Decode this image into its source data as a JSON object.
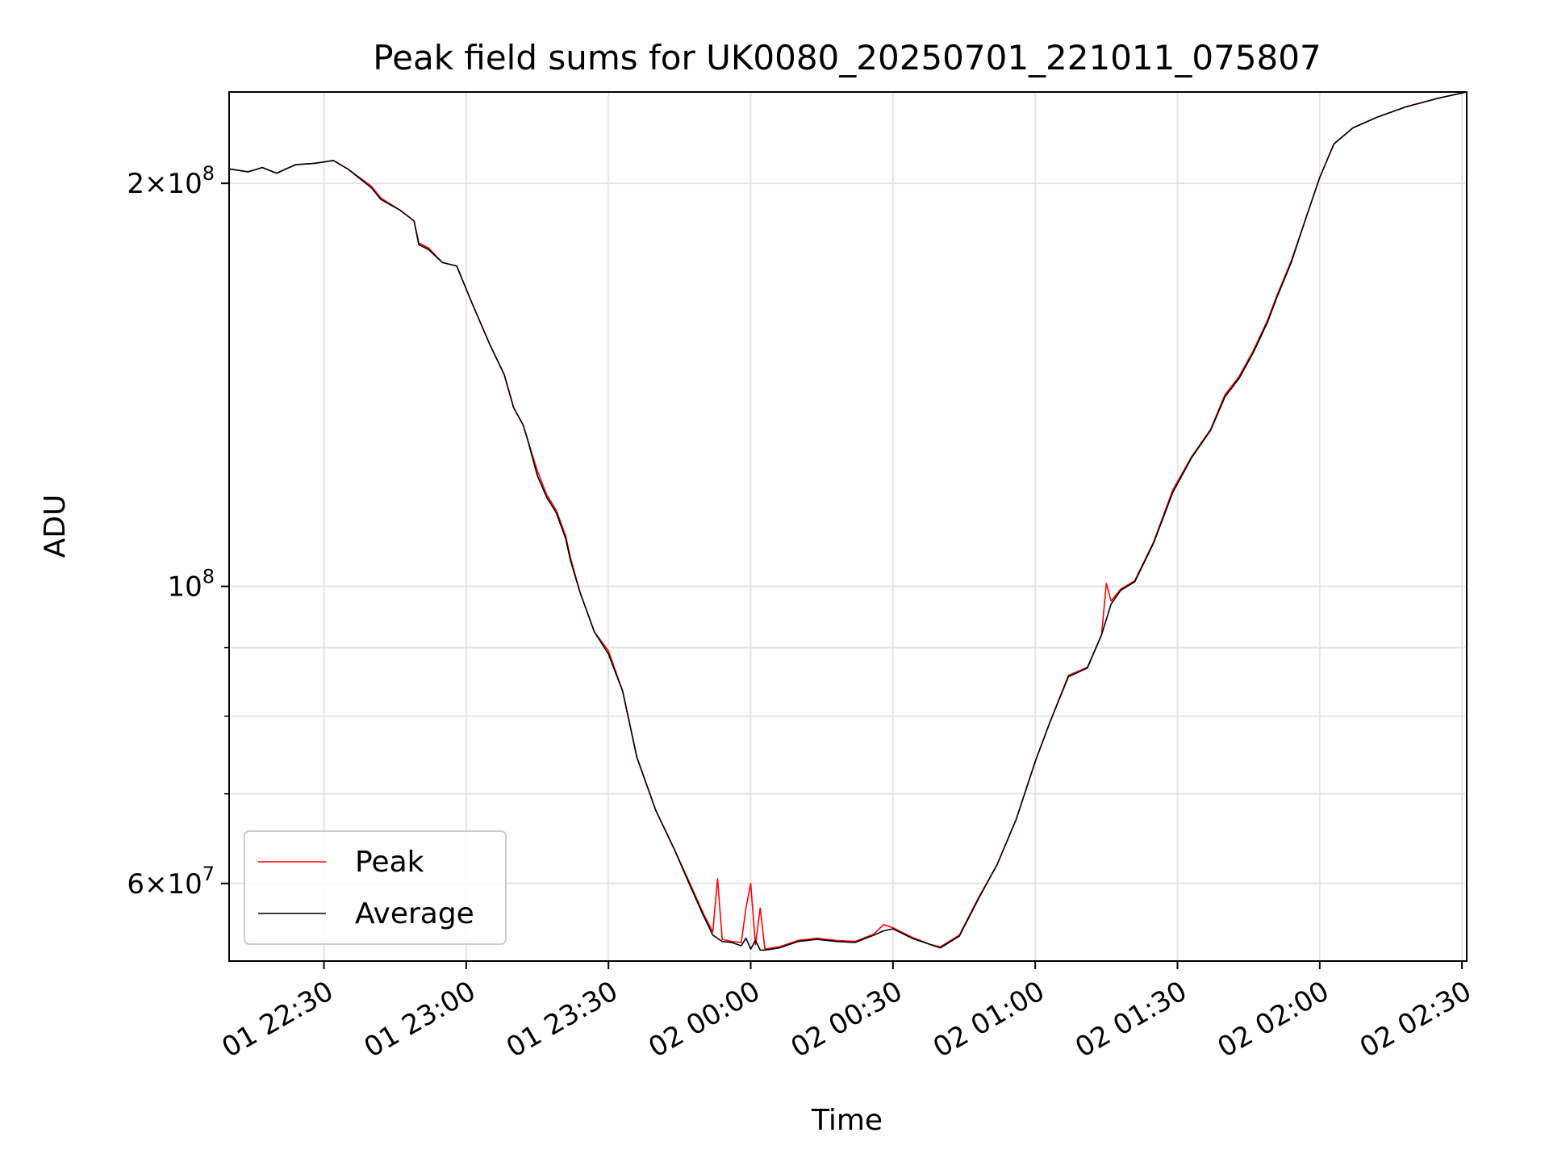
{
  "chart_data": {
    "type": "line",
    "title": "Peak field sums for UK0080_20250701_221011_075807",
    "xlabel": "Time",
    "ylabel": "ADU",
    "yscale": "log",
    "ylim": [
      52500000,
      234000000
    ],
    "xlim": [
      "2025-07-01 22:10",
      "2025-07-02 02:31"
    ],
    "x_ticks": [
      {
        "t": "2025-07-01 22:30",
        "label": "01 22:30"
      },
      {
        "t": "2025-07-01 23:00",
        "label": "01 23:00"
      },
      {
        "t": "2025-07-01 23:30",
        "label": "01 23:30"
      },
      {
        "t": "2025-07-02 00:00",
        "label": "02 00:00"
      },
      {
        "t": "2025-07-02 00:30",
        "label": "02 00:30"
      },
      {
        "t": "2025-07-02 01:00",
        "label": "02 01:00"
      },
      {
        "t": "2025-07-02 01:30",
        "label": "02 01:30"
      },
      {
        "t": "2025-07-02 02:00",
        "label": "02 02:00"
      },
      {
        "t": "2025-07-02 02:30",
        "label": "02 02:30"
      }
    ],
    "y_ticks_major": [
      {
        "v": 60000000,
        "mant": "6",
        "exp": "7"
      },
      {
        "v": 100000000,
        "mant": "",
        "exp": "8"
      },
      {
        "v": 200000000,
        "mant": "2",
        "exp": "8"
      }
    ],
    "y_ticks_minor": [
      70000000,
      80000000,
      90000000
    ],
    "grid": true,
    "legend_position": "lower-left",
    "series": [
      {
        "name": "Peak",
        "color": "#ff0000",
        "points": [
          [
            "2025-07-01 22:10",
            205000000
          ],
          [
            "2025-07-01 22:14",
            204000000
          ],
          [
            "2025-07-01 22:17",
            205500000
          ],
          [
            "2025-07-01 22:20",
            203500000
          ],
          [
            "2025-07-01 22:24",
            206500000
          ],
          [
            "2025-07-01 22:28",
            207000000
          ],
          [
            "2025-07-01 22:32",
            208000000
          ],
          [
            "2025-07-01 22:35",
            205000000
          ],
          [
            "2025-07-01 22:40",
            199000000
          ],
          [
            "2025-07-01 22:42",
            195000000
          ],
          [
            "2025-07-01 22:46",
            191000000
          ],
          [
            "2025-07-01 22:49",
            187500000
          ],
          [
            "2025-07-01 22:50",
            180500000
          ],
          [
            "2025-07-01 22:52",
            179000000
          ],
          [
            "2025-07-01 22:55",
            174500000
          ],
          [
            "2025-07-01 22:58",
            173500000
          ],
          [
            "2025-07-01 23:01",
            163500000
          ],
          [
            "2025-07-01 23:05",
            151500000
          ],
          [
            "2025-07-01 23:08",
            144000000
          ],
          [
            "2025-07-01 23:10",
            136000000
          ],
          [
            "2025-07-01 23:12",
            132000000
          ],
          [
            "2025-07-01 23:13",
            128500000
          ],
          [
            "2025-07-01 23:15",
            122000000
          ],
          [
            "2025-07-01 23:17",
            117000000
          ],
          [
            "2025-07-01 23:19",
            114000000
          ],
          [
            "2025-07-01 23:21",
            109000000
          ],
          [
            "2025-07-01 23:22",
            105000000
          ],
          [
            "2025-07-01 23:24",
            99000000
          ],
          [
            "2025-07-01 23:27",
            92500000
          ],
          [
            "2025-07-01 23:30",
            89500000
          ],
          [
            "2025-07-01 23:33",
            83500000
          ],
          [
            "2025-07-01 23:36",
            74500000
          ],
          [
            "2025-07-01 23:40",
            68000000
          ],
          [
            "2025-07-01 23:44",
            63500000
          ],
          [
            "2025-07-01 23:47",
            60200000
          ],
          [
            "2025-07-01 23:50",
            57000000
          ],
          [
            "2025-07-01 23:52",
            55200000
          ],
          [
            "2025-07-01 23:53",
            60500000
          ],
          [
            "2025-07-01 23:54",
            54500000
          ],
          [
            "2025-07-01 23:56",
            54300000
          ],
          [
            "2025-07-01 23:58",
            54200000
          ],
          [
            "2025-07-01 23:59",
            57500000
          ],
          [
            "2025-07-02 00:00",
            60000000
          ],
          [
            "2025-07-02 00:01",
            54000000
          ],
          [
            "2025-07-02 00:02",
            57500000
          ],
          [
            "2025-07-02 00:03",
            53600000
          ],
          [
            "2025-07-02 00:06",
            53800000
          ],
          [
            "2025-07-02 00:10",
            54400000
          ],
          [
            "2025-07-02 00:14",
            54600000
          ],
          [
            "2025-07-02 00:18",
            54400000
          ],
          [
            "2025-07-02 00:22",
            54300000
          ],
          [
            "2025-07-02 00:26",
            55000000
          ],
          [
            "2025-07-02 00:28",
            55900000
          ],
          [
            "2025-07-02 00:30",
            55600000
          ],
          [
            "2025-07-02 00:34",
            54700000
          ],
          [
            "2025-07-02 00:38",
            54000000
          ],
          [
            "2025-07-02 00:40",
            53800000
          ],
          [
            "2025-07-02 00:44",
            54900000
          ],
          [
            "2025-07-02 00:48",
            58500000
          ],
          [
            "2025-07-02 00:52",
            62000000
          ],
          [
            "2025-07-02 00:56",
            67000000
          ],
          [
            "2025-07-02 01:00",
            74000000
          ],
          [
            "2025-07-02 01:03",
            79000000
          ],
          [
            "2025-07-02 01:07",
            85800000
          ],
          [
            "2025-07-02 01:11",
            87000000
          ],
          [
            "2025-07-02 01:14",
            92000000
          ],
          [
            "2025-07-02 01:15",
            100500000
          ],
          [
            "2025-07-02 01:16",
            97500000
          ],
          [
            "2025-07-02 01:18",
            99500000
          ],
          [
            "2025-07-02 01:21",
            101000000
          ],
          [
            "2025-07-02 01:25",
            108000000
          ],
          [
            "2025-07-02 01:29",
            118000000
          ],
          [
            "2025-07-02 01:33",
            125000000
          ],
          [
            "2025-07-02 01:37",
            131000000
          ],
          [
            "2025-07-02 01:40",
            139000000
          ],
          [
            "2025-07-02 01:43",
            143500000
          ],
          [
            "2025-07-02 01:46",
            150000000
          ],
          [
            "2025-07-02 01:49",
            158000000
          ],
          [
            "2025-07-02 01:51",
            165000000
          ],
          [
            "2025-07-02 01:54",
            175000000
          ],
          [
            "2025-07-02 01:57",
            188000000
          ],
          [
            "2025-07-02 02:00",
            202000000
          ],
          [
            "2025-07-02 02:03",
            214000000
          ],
          [
            "2025-07-02 02:07",
            220000000
          ],
          [
            "2025-07-02 02:12",
            224000000
          ],
          [
            "2025-07-02 02:18",
            228000000
          ],
          [
            "2025-07-02 02:25",
            231500000
          ],
          [
            "2025-07-02 02:31",
            234000000
          ]
        ]
      },
      {
        "name": "Average",
        "color": "#000000",
        "points": [
          [
            "2025-07-01 22:10",
            205000000
          ],
          [
            "2025-07-01 22:14",
            204000000
          ],
          [
            "2025-07-01 22:17",
            205500000
          ],
          [
            "2025-07-01 22:20",
            203500000
          ],
          [
            "2025-07-01 22:24",
            206500000
          ],
          [
            "2025-07-01 22:28",
            207000000
          ],
          [
            "2025-07-01 22:32",
            208000000
          ],
          [
            "2025-07-01 22:35",
            205000000
          ],
          [
            "2025-07-01 22:40",
            198500000
          ],
          [
            "2025-07-01 22:42",
            194500000
          ],
          [
            "2025-07-01 22:46",
            191000000
          ],
          [
            "2025-07-01 22:49",
            187500000
          ],
          [
            "2025-07-01 22:50",
            180000000
          ],
          [
            "2025-07-01 22:52",
            178500000
          ],
          [
            "2025-07-01 22:55",
            174500000
          ],
          [
            "2025-07-01 22:58",
            173500000
          ],
          [
            "2025-07-01 23:01",
            163500000
          ],
          [
            "2025-07-01 23:05",
            151500000
          ],
          [
            "2025-07-01 23:08",
            144000000
          ],
          [
            "2025-07-01 23:10",
            136000000
          ],
          [
            "2025-07-01 23:12",
            132000000
          ],
          [
            "2025-07-01 23:13",
            128500000
          ],
          [
            "2025-07-01 23:15",
            121000000
          ],
          [
            "2025-07-01 23:17",
            116500000
          ],
          [
            "2025-07-01 23:19",
            113500000
          ],
          [
            "2025-07-01 23:21",
            108500000
          ],
          [
            "2025-07-01 23:22",
            104500000
          ],
          [
            "2025-07-01 23:24",
            99000000
          ],
          [
            "2025-07-01 23:27",
            92500000
          ],
          [
            "2025-07-01 23:30",
            89000000
          ],
          [
            "2025-07-01 23:33",
            83500000
          ],
          [
            "2025-07-01 23:36",
            74500000
          ],
          [
            "2025-07-01 23:40",
            68000000
          ],
          [
            "2025-07-01 23:44",
            63500000
          ],
          [
            "2025-07-01 23:47",
            60000000
          ],
          [
            "2025-07-01 23:50",
            56800000
          ],
          [
            "2025-07-01 23:52",
            54900000
          ],
          [
            "2025-07-01 23:54",
            54300000
          ],
          [
            "2025-07-01 23:56",
            54200000
          ],
          [
            "2025-07-01 23:58",
            53900000
          ],
          [
            "2025-07-01 23:59",
            54600000
          ],
          [
            "2025-07-02 00:00",
            53600000
          ],
          [
            "2025-07-02 00:01",
            54400000
          ],
          [
            "2025-07-02 00:02",
            53500000
          ],
          [
            "2025-07-02 00:03",
            53500000
          ],
          [
            "2025-07-02 00:06",
            53700000
          ],
          [
            "2025-07-02 00:10",
            54300000
          ],
          [
            "2025-07-02 00:14",
            54500000
          ],
          [
            "2025-07-02 00:18",
            54300000
          ],
          [
            "2025-07-02 00:22",
            54200000
          ],
          [
            "2025-07-02 00:26",
            54900000
          ],
          [
            "2025-07-02 00:28",
            55300000
          ],
          [
            "2025-07-02 00:30",
            55500000
          ],
          [
            "2025-07-02 00:34",
            54600000
          ],
          [
            "2025-07-02 00:38",
            54000000
          ],
          [
            "2025-07-02 00:40",
            53700000
          ],
          [
            "2025-07-02 00:44",
            54800000
          ],
          [
            "2025-07-02 00:48",
            58400000
          ],
          [
            "2025-07-02 00:52",
            62000000
          ],
          [
            "2025-07-02 00:56",
            67000000
          ],
          [
            "2025-07-02 01:00",
            74000000
          ],
          [
            "2025-07-02 01:03",
            79000000
          ],
          [
            "2025-07-02 01:07",
            85600000
          ],
          [
            "2025-07-02 01:11",
            86900000
          ],
          [
            "2025-07-02 01:14",
            92000000
          ],
          [
            "2025-07-02 01:16",
            97000000
          ],
          [
            "2025-07-02 01:18",
            99300000
          ],
          [
            "2025-07-02 01:21",
            100800000
          ],
          [
            "2025-07-02 01:25",
            107800000
          ],
          [
            "2025-07-02 01:29",
            117500000
          ],
          [
            "2025-07-02 01:33",
            124800000
          ],
          [
            "2025-07-02 01:37",
            130800000
          ],
          [
            "2025-07-02 01:40",
            138500000
          ],
          [
            "2025-07-02 01:43",
            143000000
          ],
          [
            "2025-07-02 01:46",
            149500000
          ],
          [
            "2025-07-02 01:49",
            157500000
          ],
          [
            "2025-07-02 01:51",
            164500000
          ],
          [
            "2025-07-02 01:54",
            174500000
          ],
          [
            "2025-07-02 01:57",
            188000000
          ],
          [
            "2025-07-02 02:00",
            202000000
          ],
          [
            "2025-07-02 02:03",
            214000000
          ],
          [
            "2025-07-02 02:07",
            220000000
          ],
          [
            "2025-07-02 02:12",
            224000000
          ],
          [
            "2025-07-02 02:18",
            228000000
          ],
          [
            "2025-07-02 02:25",
            231500000
          ],
          [
            "2025-07-02 02:31",
            234000000
          ]
        ]
      }
    ]
  }
}
